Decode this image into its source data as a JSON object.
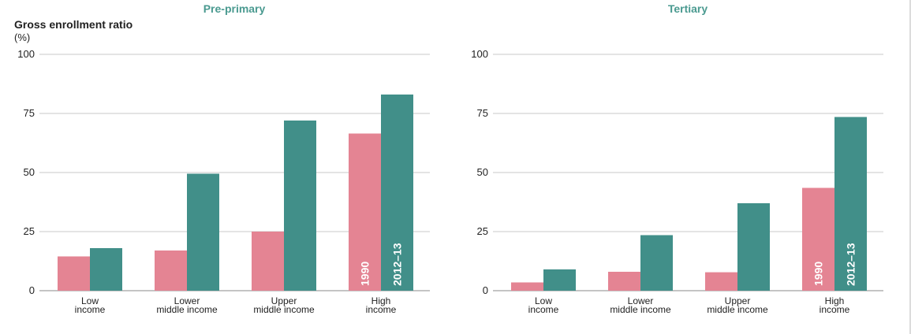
{
  "chart_data": [
    {
      "type": "bar",
      "title": "Pre-primary",
      "ylabel": "Gross enrollment ratio",
      "ylabel_unit": "(%)",
      "ylim": [
        0,
        100
      ],
      "yticks": [
        "0",
        "25",
        "50",
        "75",
        "100"
      ],
      "grid": true,
      "categories": [
        [
          "Low",
          "income"
        ],
        [
          "Lower",
          "middle income"
        ],
        [
          "Upper",
          "middle income"
        ],
        [
          "High",
          "income"
        ]
      ],
      "series": [
        {
          "name": "1990",
          "color": "#e48493",
          "values": [
            14.5,
            17,
            25,
            66.5
          ]
        },
        {
          "name": "2012–13",
          "color": "#418f89",
          "values": [
            18,
            49.5,
            72,
            83
          ]
        }
      ]
    },
    {
      "type": "bar",
      "title": "Tertiary",
      "ylim": [
        0,
        100
      ],
      "yticks": [
        "0",
        "25",
        "50",
        "75",
        "100"
      ],
      "grid": true,
      "categories": [
        [
          "Low",
          "income"
        ],
        [
          "Lower",
          "middle income"
        ],
        [
          "Upper",
          "middle income"
        ],
        [
          "High",
          "income"
        ]
      ],
      "series": [
        {
          "name": "1990",
          "color": "#e48493",
          "values": [
            3.5,
            8,
            7.8,
            43.5
          ]
        },
        {
          "name": "2012–13",
          "color": "#418f89",
          "values": [
            9,
            23.5,
            37,
            73.5
          ]
        }
      ]
    }
  ],
  "colors": {
    "title": "#4a9a90",
    "grid": "#c8c8c8",
    "axis": "#888888",
    "text": "#222222"
  }
}
